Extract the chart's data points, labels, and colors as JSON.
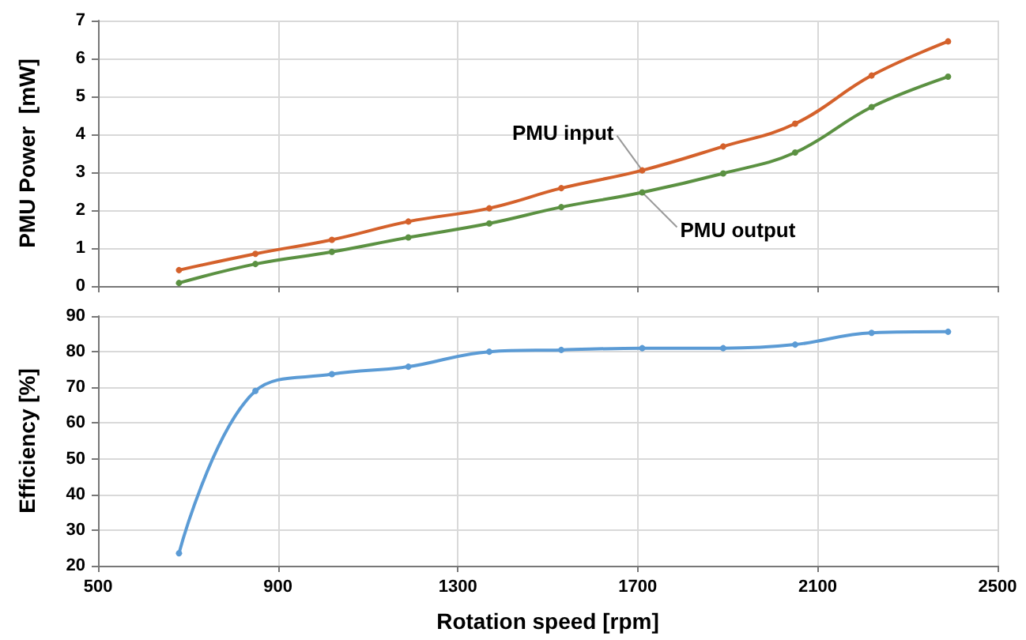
{
  "chart_data": [
    {
      "type": "line",
      "ylabel": "PMU Power  [mW]",
      "x": [
        680,
        850,
        1020,
        1190,
        1370,
        1530,
        1710,
        1890,
        2050,
        2220,
        2390
      ],
      "series": [
        {
          "name": "PMU input",
          "color": "#d4612b",
          "values": [
            0.42,
            0.85,
            1.22,
            1.7,
            2.05,
            2.58,
            3.05,
            3.68,
            4.28,
            5.55,
            6.45
          ]
        },
        {
          "name": "PMU output",
          "color": "#5b9142",
          "values": [
            0.08,
            0.58,
            0.9,
            1.28,
            1.65,
            2.08,
            2.47,
            2.97,
            3.52,
            4.72,
            5.52
          ]
        }
      ],
      "xlim": [
        500,
        2500
      ],
      "xticks": [
        500,
        900,
        1300,
        1700,
        2100,
        2500
      ],
      "ylim": [
        0,
        7
      ],
      "yticks": [
        0,
        1,
        2,
        3,
        4,
        5,
        6,
        7
      ],
      "tick_labels": "y",
      "grid": true,
      "legend": false,
      "marker": "circle"
    },
    {
      "type": "line",
      "xlabel": "Rotation speed [rpm]",
      "ylabel": "Efficiency [%]",
      "x": [
        680,
        850,
        1020,
        1190,
        1370,
        1530,
        1710,
        1890,
        2050,
        2220,
        2390
      ],
      "series": [
        {
          "color": "#5b9bd5",
          "values": [
            23.5,
            69,
            73.7,
            75.8,
            80,
            80.5,
            81,
            81,
            82,
            85.3,
            85.6
          ]
        }
      ],
      "xlim": [
        500,
        2500
      ],
      "xticks": [
        500,
        900,
        1300,
        1700,
        2100,
        2500
      ],
      "ylim": [
        20,
        90
      ],
      "yticks": [
        20,
        30,
        40,
        50,
        60,
        70,
        80,
        90
      ],
      "grid": true,
      "legend": false,
      "marker": "circle"
    }
  ]
}
